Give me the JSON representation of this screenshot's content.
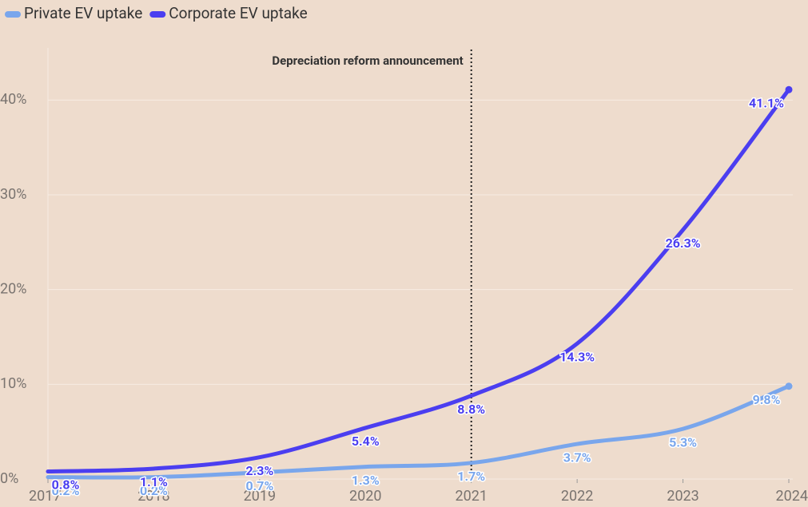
{
  "chart_data": {
    "type": "line",
    "x": [
      2017,
      2018,
      2019,
      2020,
      2021,
      2022,
      2023,
      2024
    ],
    "xlim": [
      2017,
      2024
    ],
    "xticks": [
      2017,
      2018,
      2019,
      2020,
      2021,
      2022,
      2023,
      2024
    ],
    "ylim": [
      0,
      45
    ],
    "yticks": [
      {
        "value": 0,
        "label": "0%"
      },
      {
        "value": 10,
        "label": "10%"
      },
      {
        "value": 20,
        "label": "20%"
      },
      {
        "value": 30,
        "label": "30%"
      },
      {
        "value": 40,
        "label": "40%"
      }
    ],
    "grid": true,
    "legend": "top-left",
    "annotation": {
      "x": 2021,
      "text": "Depreciation reform announcement"
    },
    "series": [
      {
        "name": "Private EV uptake",
        "color": "#79a6ec",
        "values": [
          0.2,
          0.2,
          0.7,
          1.3,
          1.7,
          3.7,
          5.3,
          9.8
        ],
        "value_labels": [
          "0.2%",
          "0.2%",
          "0.7%",
          "1.3%",
          "1.7%",
          "3.7%",
          "5.3%",
          "9.8%"
        ]
      },
      {
        "name": "Corporate EV uptake",
        "color": "#4b3ef0",
        "values": [
          0.8,
          1.1,
          2.3,
          5.4,
          8.8,
          14.3,
          26.3,
          41.1
        ],
        "value_labels": [
          "0.8%",
          "1.1%",
          "2.3%",
          "5.4%",
          "8.8%",
          "14.3%",
          "26.3%",
          "41.1%"
        ]
      }
    ]
  }
}
